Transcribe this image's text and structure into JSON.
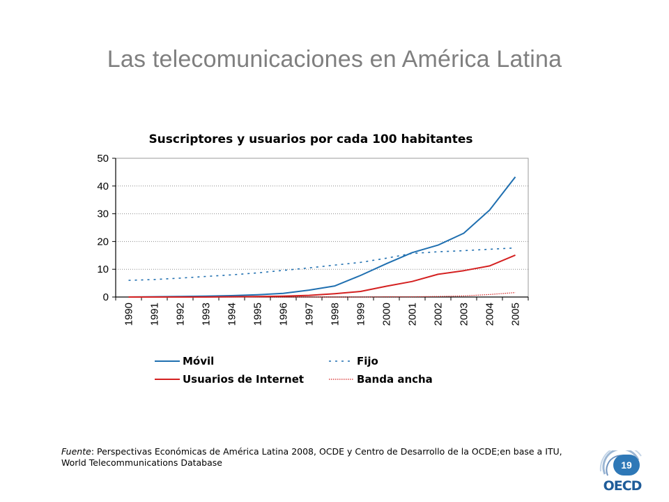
{
  "slide": {
    "title": "Las telecomunicaciones en América Latina",
    "page_number": "19",
    "logo_text": "OECD"
  },
  "source": {
    "label": "Fuente",
    "text": ":  Perspectivas Económicas de América Latina 2008, OCDE y Centro de Desarrollo de la OCDE;en base a ITU, World Telecommunications Database"
  },
  "colors": {
    "blue": "#1f6fb0",
    "red": "#d42020",
    "grid": "#8a8a8a",
    "title_gray": "#7f7f7f",
    "badge": "#2e78b7"
  },
  "chart_data": {
    "type": "line",
    "title": "Suscriptores y usuarios por cada 100 habitantes",
    "xlabel": "",
    "ylabel": "",
    "ylim": [
      0,
      50
    ],
    "yticks": [
      "0",
      "10",
      "20",
      "30",
      "40",
      "50"
    ],
    "categories": [
      "1990",
      "1991",
      "1992",
      "1993",
      "1994",
      "1995",
      "1996",
      "1997",
      "1998",
      "1999",
      "2000",
      "2001",
      "2002",
      "2003",
      "2004",
      "2005"
    ],
    "grid": "horizontal dotted",
    "legend_position": "bottom",
    "series": [
      {
        "name": "Móvil",
        "color": "blue",
        "style": "solid",
        "values": [
          0.0,
          0.1,
          0.2,
          0.3,
          0.5,
          0.8,
          1.3,
          2.5,
          4.0,
          7.8,
          12.0,
          16.0,
          18.7,
          23.0,
          31.3,
          43.3
        ]
      },
      {
        "name": "Fijo",
        "color": "blue",
        "style": "dotted",
        "values": [
          6.0,
          6.3,
          6.8,
          7.4,
          8.0,
          8.7,
          9.6,
          10.5,
          11.5,
          12.5,
          14.0,
          15.7,
          16.3,
          16.7,
          17.2,
          17.7
        ]
      },
      {
        "name": "Usuarios de Internet",
        "color": "red",
        "style": "solid",
        "values": [
          0.0,
          0.0,
          0.0,
          0.0,
          0.1,
          0.2,
          0.3,
          0.6,
          1.2,
          2.0,
          3.9,
          5.6,
          8.2,
          9.5,
          11.2,
          15.1
        ]
      },
      {
        "name": "Banda ancha",
        "color": "red",
        "style": "thin",
        "values": [
          0.0,
          0.0,
          0.0,
          0.0,
          0.0,
          0.0,
          0.0,
          0.0,
          0.0,
          0.0,
          0.1,
          0.1,
          0.2,
          0.4,
          0.9,
          1.6
        ]
      }
    ]
  }
}
